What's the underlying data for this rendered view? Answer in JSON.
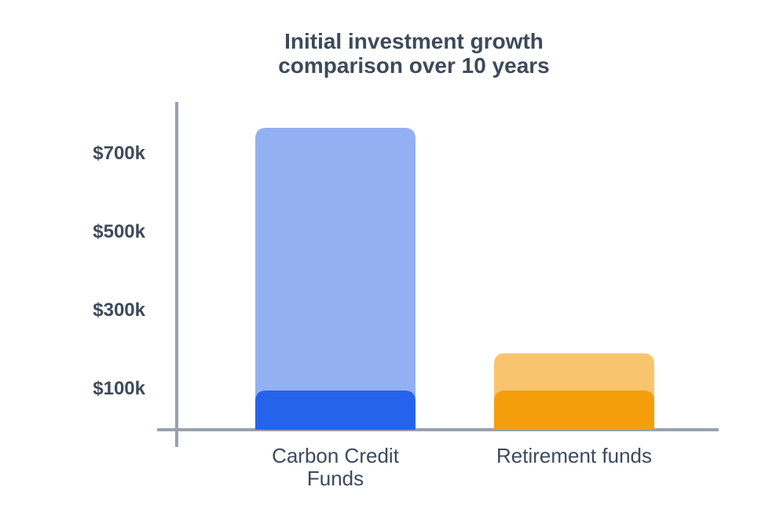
{
  "chart_data": {
    "type": "bar",
    "overlap": true,
    "title": "Initial investment growth comparison over 10 years",
    "categories": [
      "Carbon Credit Funds",
      "Retirement funds"
    ],
    "series": [
      {
        "colors": [
          "#93b0f3",
          "#f8c56e"
        ],
        "values": [
          770000,
          195000
        ]
      },
      {
        "colors": [
          "#2563eb",
          "#f59e0b"
        ],
        "values": [
          100000,
          100000
        ]
      }
    ],
    "ylim": [
      -44000,
      836000
    ],
    "yticks": [
      {
        "value": 100000,
        "label": "$100k"
      },
      {
        "value": 300000,
        "label": "$300k"
      },
      {
        "value": 500000,
        "label": "$500k"
      },
      {
        "value": 700000,
        "label": "$700k"
      }
    ],
    "grid": false
  }
}
